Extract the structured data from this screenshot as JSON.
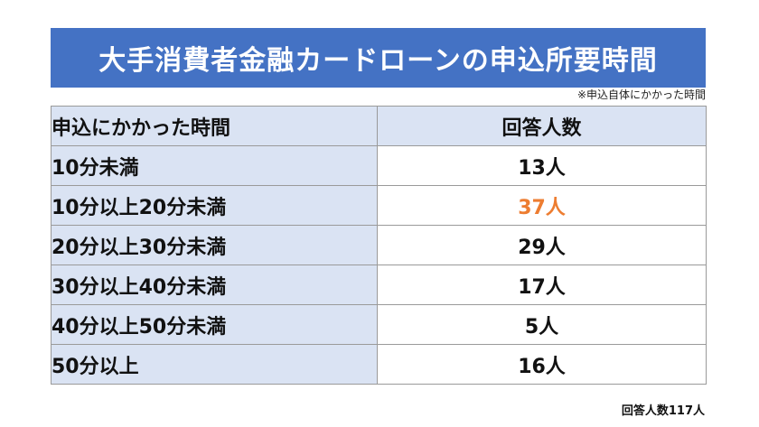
{
  "title": "大手消費者金融カードローンの申込所要時間",
  "note": "※申込自体にかかった時間",
  "table": {
    "headers": {
      "time": "申込にかかった時間",
      "count": "回答人数"
    },
    "rows": [
      {
        "time": "10分未満",
        "count": "13人"
      },
      {
        "time": "10分以上20分未満",
        "count": "37人"
      },
      {
        "time": "20分以上30分未満",
        "count": "29人"
      },
      {
        "time": "30分以上40分未満",
        "count": "17人"
      },
      {
        "time": "40分以上50分未満",
        "count": "5人"
      },
      {
        "time": "50分以上",
        "count": "16人"
      }
    ]
  },
  "total": "回答人数117人",
  "colors": {
    "banner": "#4472c4",
    "header_fill": "#dae3f3",
    "highlight": "#ed7d31"
  }
}
